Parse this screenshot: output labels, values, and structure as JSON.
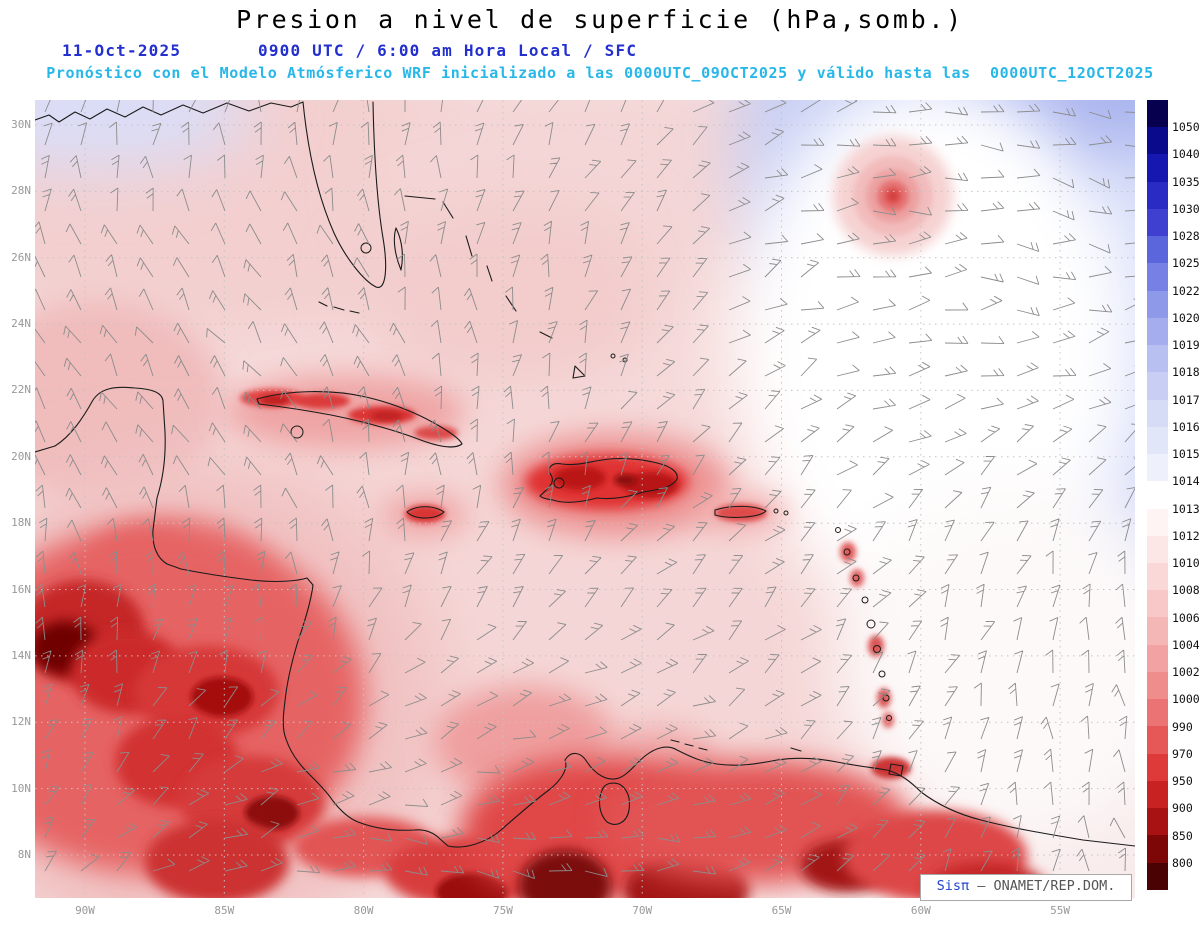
{
  "header": {
    "title": "Presion a nivel de superficie (hPa,somb.)",
    "date": "11-Oct-2025",
    "time": "0900 UTC / 6:00 am Hora Local / SFC",
    "forecast": "Pronóstico con el Modelo Atmósferico WRF inicializado a las 0000UTC_09OCT2025 y válido hasta las  0000UTC_12OCT2025"
  },
  "map": {
    "lat_labels": [
      "30N",
      "28N",
      "26N",
      "24N",
      "22N",
      "20N",
      "18N",
      "16N",
      "14N",
      "12N",
      "10N",
      "8N"
    ],
    "lon_labels": [
      "90W",
      "85W",
      "80W",
      "75W",
      "70W",
      "65W",
      "60W",
      "55W"
    ],
    "watermark_brand": "Sisπ",
    "watermark_text": " – ONAMET/REP.DOM."
  },
  "colorbar": {
    "levels": [
      "1050",
      "1040",
      "1035",
      "1030",
      "1028",
      "1025",
      "1022",
      "1020",
      "1019",
      "1018",
      "1017",
      "1016",
      "1015",
      "1014",
      "1013",
      "1012",
      "1010",
      "1008",
      "1006",
      "1004",
      "1002",
      "1000",
      "990",
      "970",
      "950",
      "900",
      "850",
      "800"
    ],
    "colors": [
      "#06004f",
      "#0a0a8c",
      "#1616b0",
      "#2a2ac4",
      "#4040d0",
      "#5b66dc",
      "#7780e4",
      "#8f99ea",
      "#a5adee",
      "#b8c0f2",
      "#c8cef4",
      "#d6dbf6",
      "#e2e6f9",
      "#eef0fb",
      "#ffffff",
      "#fef4f4",
      "#fce6e6",
      "#fad8d8",
      "#f8c8c8",
      "#f5b6b6",
      "#f2a2a2",
      "#ef8c8c",
      "#eb7373",
      "#e65757",
      "#de3a3a",
      "#c92222",
      "#a81212",
      "#7d0707",
      "#4a0202"
    ]
  },
  "chart_data": {
    "type": "heatmap",
    "title": "Presion a nivel de superficie (hPa,somb.)",
    "units": "hPa",
    "scale_levels_hPa": [
      1050,
      1040,
      1035,
      1030,
      1028,
      1025,
      1022,
      1020,
      1019,
      1018,
      1017,
      1016,
      1015,
      1014,
      1013,
      1012,
      1010,
      1008,
      1006,
      1004,
      1002,
      1000,
      990,
      970,
      950,
      900,
      850,
      800
    ],
    "lat_range": [
      "8N",
      "30N"
    ],
    "lon_range": [
      "90W",
      "55W"
    ],
    "legend_position": "right",
    "grid": "dotted graticule every 2 deg lat / 5 deg lon",
    "overlays": [
      "wind barbs (gray)",
      "coastlines (black)"
    ],
    "features": [
      {
        "name": "tropical-cyclone-low",
        "approx_position": "27N 59.5W",
        "appearance": "concentric red/pink rings"
      },
      {
        "name": "subtropical-high",
        "approx_position": "northeast corner of domain",
        "appearance": "blue shading > 1016 hPa"
      },
      {
        "name": "low-pressure-shading",
        "regions": [
          "Central America",
          "Cuba",
          "Jamaica",
          "Hispaniola",
          "Puerto Rico",
          "Lesser Antilles",
          "northern South America"
        ],
        "appearance": "red shading < 1012 hPa (terrain-influenced)"
      }
    ]
  }
}
